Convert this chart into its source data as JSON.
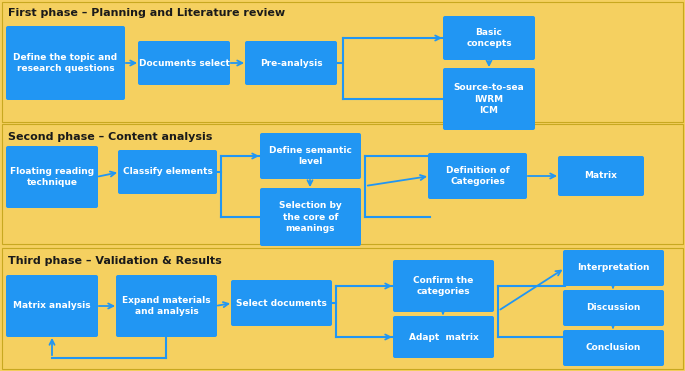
{
  "bg_color": "#F5D060",
  "box_color": "#2196F3",
  "box_text_color": "#FFFFFF",
  "header_text_color": "#1a1a1a",
  "arrow_color": "#2196F3",
  "bracket_color": "#2196F3",
  "phase1_header": "First phase – Planning and Literature review",
  "phase2_header": "Second phase – Content analysis",
  "phase3_header": "Third phase – Validation & Results",
  "fig_w": 6.85,
  "fig_h": 3.71,
  "dpi": 100
}
